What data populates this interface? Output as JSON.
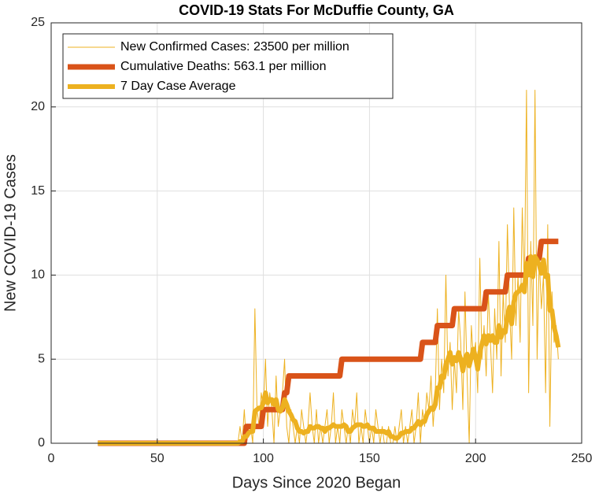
{
  "chart_data": {
    "type": "line",
    "title": "COVID-19 Stats For McDuffie County, GA",
    "xlabel": "Days Since 2020 Began",
    "ylabel": "New COVID-19 Cases",
    "xlim": [
      0,
      250
    ],
    "xticks": [
      0,
      50,
      100,
      150,
      200,
      250
    ],
    "ylim": [
      0,
      25
    ],
    "yticks": [
      0,
      5,
      10,
      15,
      20,
      25
    ],
    "grid": true,
    "legend": "upper-left",
    "x": [
      22,
      23,
      24,
      25,
      26,
      27,
      28,
      29,
      30,
      31,
      32,
      33,
      34,
      35,
      36,
      37,
      38,
      39,
      40,
      41,
      42,
      43,
      44,
      45,
      46,
      47,
      48,
      49,
      50,
      51,
      52,
      53,
      54,
      55,
      56,
      57,
      58,
      59,
      60,
      61,
      62,
      63,
      64,
      65,
      66,
      67,
      68,
      69,
      70,
      71,
      72,
      73,
      74,
      75,
      76,
      77,
      78,
      79,
      80,
      81,
      82,
      83,
      84,
      85,
      86,
      87,
      88,
      89,
      90,
      91,
      92,
      93,
      94,
      95,
      96,
      97,
      98,
      99,
      100,
      101,
      102,
      103,
      104,
      105,
      106,
      107,
      108,
      109,
      110,
      111,
      112,
      113,
      114,
      115,
      116,
      117,
      118,
      119,
      120,
      121,
      122,
      123,
      124,
      125,
      126,
      127,
      128,
      129,
      130,
      131,
      132,
      133,
      134,
      135,
      136,
      137,
      138,
      139,
      140,
      141,
      142,
      143,
      144,
      145,
      146,
      147,
      148,
      149,
      150,
      151,
      152,
      153,
      154,
      155,
      156,
      157,
      158,
      159,
      160,
      161,
      162,
      163,
      164,
      165,
      166,
      167,
      168,
      169,
      170,
      171,
      172,
      173,
      174,
      175,
      176,
      177,
      178,
      179,
      180,
      181,
      182,
      183,
      184,
      185,
      186,
      187,
      188,
      189,
      190,
      191,
      192,
      193,
      194,
      195,
      196,
      197,
      198,
      199,
      200,
      201,
      202,
      203,
      204,
      205,
      206,
      207,
      208,
      209,
      210,
      211,
      212,
      213,
      214,
      215,
      216,
      217,
      218,
      219,
      220,
      221,
      222,
      223,
      224,
      225,
      226,
      227,
      228,
      229,
      230,
      231,
      232,
      233,
      234,
      235,
      236,
      237,
      238,
      239
    ],
    "series": [
      {
        "name": "New Confirmed Cases: 23500 per million",
        "color": "#EDB120",
        "width": 1,
        "values": [
          0,
          0,
          0,
          0,
          0,
          0,
          0,
          0,
          0,
          0,
          0,
          0,
          0,
          0,
          0,
          0,
          0,
          0,
          0,
          0,
          0,
          0,
          0,
          0,
          0,
          0,
          0,
          0,
          0,
          0,
          0,
          0,
          0,
          0,
          0,
          0,
          0,
          0,
          0,
          0,
          0,
          0,
          0,
          0,
          0,
          0,
          0,
          0,
          0,
          0,
          0,
          0,
          0,
          0,
          0,
          0,
          0,
          0,
          0,
          0,
          0,
          0,
          0,
          0,
          0,
          0,
          0,
          1,
          0,
          2,
          0,
          1,
          1,
          0,
          8,
          2,
          1,
          3,
          2,
          5,
          1,
          3,
          2,
          0,
          4,
          1,
          2,
          3,
          5,
          1,
          0,
          2,
          1,
          0,
          1,
          0,
          2,
          1,
          0,
          1,
          3,
          1,
          0,
          2,
          0,
          1,
          0,
          1,
          2,
          0,
          1,
          3,
          0,
          1,
          0,
          2,
          1,
          0,
          1,
          0,
          2,
          1,
          3,
          0,
          1,
          0,
          2,
          1,
          0,
          1,
          0,
          2,
          1,
          0,
          1,
          0,
          0,
          1,
          0,
          0,
          1,
          0,
          1,
          2,
          0,
          1,
          0,
          1,
          2,
          0,
          1,
          3,
          0,
          2,
          1,
          3,
          2,
          4,
          1,
          3,
          8,
          2,
          5,
          3,
          10,
          4,
          6,
          2,
          5,
          3,
          8,
          6,
          2,
          9,
          4,
          0,
          7,
          5,
          6,
          3,
          11,
          5,
          7,
          4,
          9,
          6,
          3,
          8,
          5,
          12,
          4,
          9,
          6,
          13,
          8,
          5,
          14,
          7,
          10,
          6,
          14,
          9,
          21,
          3,
          12,
          7,
          21,
          5,
          11,
          8,
          10,
          3,
          13,
          1,
          9,
          6,
          7,
          5
        ]
      },
      {
        "name": "Cumulative Deaths: 563.1 per million",
        "color": "#D95319",
        "width": 7,
        "values": [
          0,
          0,
          0,
          0,
          0,
          0,
          0,
          0,
          0,
          0,
          0,
          0,
          0,
          0,
          0,
          0,
          0,
          0,
          0,
          0,
          0,
          0,
          0,
          0,
          0,
          0,
          0,
          0,
          0,
          0,
          0,
          0,
          0,
          0,
          0,
          0,
          0,
          0,
          0,
          0,
          0,
          0,
          0,
          0,
          0,
          0,
          0,
          0,
          0,
          0,
          0,
          0,
          0,
          0,
          0,
          0,
          0,
          0,
          0,
          0,
          0,
          0,
          0,
          0,
          0,
          0,
          0,
          0,
          0,
          0,
          1,
          1,
          1,
          1,
          1,
          1,
          1,
          1,
          2,
          2,
          2,
          2,
          2,
          2,
          2,
          2,
          2,
          2,
          3,
          3,
          4,
          4,
          4,
          4,
          4,
          4,
          4,
          4,
          4,
          4,
          4,
          4,
          4,
          4,
          4,
          4,
          4,
          4,
          4,
          4,
          4,
          4,
          4,
          4,
          4,
          5,
          5,
          5,
          5,
          5,
          5,
          5,
          5,
          5,
          5,
          5,
          5,
          5,
          5,
          5,
          5,
          5,
          5,
          5,
          5,
          5,
          5,
          5,
          5,
          5,
          5,
          5,
          5,
          5,
          5,
          5,
          5,
          5,
          5,
          5,
          5,
          5,
          5,
          6,
          6,
          6,
          6,
          6,
          6,
          6,
          7,
          7,
          7,
          7,
          7,
          7,
          7,
          7,
          8,
          8,
          8,
          8,
          8,
          8,
          8,
          8,
          8,
          8,
          8,
          8,
          8,
          8,
          8,
          9,
          9,
          9,
          9,
          9,
          9,
          9,
          9,
          9,
          9,
          10,
          10,
          10,
          10,
          10,
          10,
          10,
          10,
          10,
          10,
          11,
          11,
          11,
          11,
          11,
          11,
          12,
          12,
          12,
          12,
          12,
          12,
          12,
          12,
          12
        ]
      },
      {
        "name": "7 Day Case Average",
        "color": "#EDB120",
        "width": 6,
        "values": [
          0,
          0,
          0,
          0,
          0,
          0,
          0,
          0,
          0,
          0,
          0,
          0,
          0,
          0,
          0,
          0,
          0,
          0,
          0,
          0,
          0,
          0,
          0,
          0,
          0,
          0,
          0,
          0,
          0,
          0,
          0,
          0,
          0,
          0,
          0,
          0,
          0,
          0,
          0,
          0,
          0,
          0,
          0,
          0,
          0,
          0,
          0,
          0,
          0,
          0,
          0,
          0,
          0,
          0,
          0,
          0,
          0,
          0,
          0,
          0,
          0,
          0,
          0,
          0,
          0,
          0,
          0,
          0.1,
          0.1,
          0.4,
          0.4,
          0.6,
          0.7,
          0.7,
          1.9,
          2.0,
          2.1,
          2.1,
          2.4,
          3.0,
          2.4,
          2.6,
          2.6,
          2.3,
          2.6,
          2.0,
          1.9,
          2.1,
          2.6,
          2.3,
          1.9,
          1.7,
          1.4,
          1.3,
          0.9,
          0.7,
          0.7,
          0.6,
          0.7,
          0.7,
          1.0,
          0.9,
          0.9,
          1.0,
          1.0,
          0.9,
          0.9,
          0.7,
          0.9,
          0.9,
          1.0,
          1.1,
          1.0,
          1.0,
          1.0,
          1.0,
          1.1,
          1.0,
          0.7,
          0.7,
          0.9,
          1.0,
          1.1,
          1.1,
          1.1,
          1.0,
          1.0,
          1.1,
          0.9,
          0.9,
          0.9,
          0.7,
          0.7,
          0.7,
          0.7,
          0.7,
          0.6,
          0.7,
          0.4,
          0.4,
          0.3,
          0.3,
          0.4,
          0.6,
          0.6,
          0.7,
          0.7,
          0.7,
          0.9,
          0.9,
          1.1,
          1.3,
          1.1,
          1.3,
          1.3,
          1.7,
          1.9,
          2.1,
          2.0,
          2.3,
          3.3,
          3.3,
          4.0,
          3.9,
          4.7,
          5.0,
          5.4,
          4.7,
          5.1,
          4.9,
          5.4,
          5.0,
          4.3,
          5.0,
          5.3,
          4.6,
          5.1,
          5.6,
          5.1,
          4.4,
          5.4,
          5.9,
          6.4,
          5.9,
          6.4,
          6.1,
          6.4,
          6.0,
          6.0,
          7.0,
          6.3,
          6.7,
          6.6,
          7.6,
          8.1,
          7.1,
          8.4,
          8.9,
          9.0,
          9.1,
          9.4,
          9.0,
          10.7,
          10.0,
          11.1,
          9.9,
          11.1,
          10.9,
          10.6,
          10.1,
          10.9,
          9.9,
          10.0,
          7.9,
          7.9,
          6.9,
          6.4,
          5.7
        ]
      }
    ]
  }
}
